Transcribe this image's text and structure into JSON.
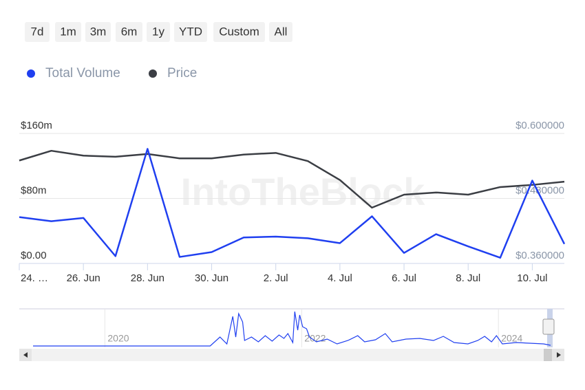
{
  "range_selector": {
    "buttons": [
      "7d",
      "1m",
      "3m",
      "6m",
      "1y",
      "YTD",
      "Custom",
      "All"
    ]
  },
  "watermark": "IntoTheBlock",
  "chart_data": [
    {
      "type": "line",
      "categories": [
        "24. …",
        null,
        "26. Jun",
        null,
        "28. Jun",
        null,
        "30. Jun",
        null,
        "2. Jul",
        null,
        "4. Jul",
        null,
        "6. Jul",
        null,
        "8. Jul",
        null,
        "10. Jul",
        null
      ],
      "series": [
        {
          "name": "Total Volume",
          "color": "#1f3ff0",
          "values": [
            57,
            52,
            56,
            9,
            141,
            8,
            14,
            32,
            33,
            31,
            25,
            58,
            13,
            36,
            21,
            7,
            102,
            24
          ]
        },
        {
          "name": "Price",
          "color": "#3b3e44",
          "axis": "y2",
          "values": [
            0.55,
            0.568,
            0.559,
            0.557,
            0.562,
            0.554,
            0.554,
            0.561,
            0.564,
            0.549,
            0.514,
            0.463,
            0.487,
            0.491,
            0.487,
            0.501,
            0.505,
            0.511
          ]
        }
      ],
      "ylim": [
        0,
        160
      ],
      "yticks": [
        {
          "value": 0,
          "label": "$0.00"
        },
        {
          "value": 80,
          "label": "$80m"
        },
        {
          "value": 160,
          "label": "$160m"
        }
      ],
      "y2lim": [
        0.36,
        0.6
      ],
      "y2ticks": [
        {
          "value": 0.36,
          "label": "$0.360000"
        },
        {
          "value": 0.48,
          "label": "$0.480000"
        },
        {
          "value": 0.6,
          "label": "$0.600000"
        }
      ],
      "grid": true
    },
    {
      "type": "line",
      "x": [
        2019.27,
        2021.07,
        2021.17,
        2021.24,
        2021.3,
        2021.33,
        2021.36,
        2021.4,
        2021.42,
        2021.49,
        2021.56,
        2021.63,
        2021.7,
        2021.77,
        2021.82,
        2021.86,
        2021.91,
        2021.93,
        2021.96,
        2021.98,
        2022.01,
        2022.05,
        2022.08,
        2022.15,
        2022.26,
        2022.36,
        2022.47,
        2022.57,
        2022.64,
        2022.75,
        2022.85,
        2022.92,
        2023.06,
        2023.2,
        2023.34,
        2023.44,
        2023.55,
        2023.69,
        2023.79,
        2023.86,
        2023.93,
        2023.98,
        2024.04,
        2024.18,
        2024.32,
        2024.46,
        2024.53
      ],
      "values": [
        0,
        0,
        13,
        3,
        43,
        13,
        47,
        35,
        8,
        13,
        6,
        15,
        7,
        16,
        11,
        18,
        5,
        50,
        23,
        45,
        28,
        25,
        13,
        6,
        10,
        3,
        8,
        15,
        6,
        9,
        18,
        6,
        10,
        11,
        8,
        14,
        5,
        3,
        8,
        14,
        6,
        15,
        3,
        5,
        4,
        3,
        1
      ],
      "color": "#1f3ff0",
      "xlim": [
        2019.13,
        2024.67
      ],
      "xticks": [
        2020,
        2022,
        2024
      ],
      "ylim": [
        0,
        54
      ],
      "grid": true
    }
  ]
}
